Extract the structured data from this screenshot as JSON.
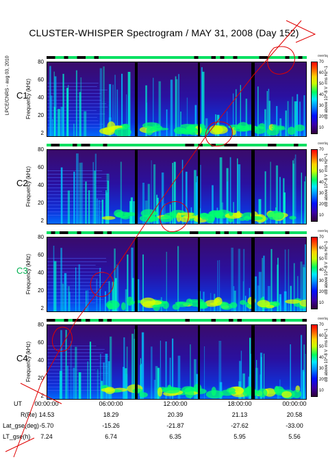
{
  "title": "CLUSTER-WHISPER Spectrogram / MAY 31, 2008 (Day 152)",
  "side_label": "LPCE/CNRS - aug 03, 2010",
  "colors": {
    "c3_label": "#00b050",
    "annotation_red": "#e00000"
  },
  "panels": [
    {
      "sat": "C1",
      "ylabel": "Frequency (kHz)",
      "cbar_label": "dB above 10^-8 V_rms Hz^-1"
    },
    {
      "sat": "C2",
      "ylabel": "Frequency (kHz)",
      "cbar_label": "dB above 10^-8 V_rms Hz^-1"
    },
    {
      "sat": "C3",
      "ylabel": "Frequency (kHz)",
      "cbar_label": "dB above 10^-8 V_rms Hz^-1"
    },
    {
      "sat": "C4",
      "ylabel": "Frequency (kHz)",
      "cbar_label": "dB above 10^-8 V_rms Hz^-1"
    }
  ],
  "corner_mark": "overlay",
  "chart_data": {
    "type": "heatmap",
    "yticks": [
      "80",
      "60",
      "40",
      "20",
      "2"
    ],
    "ylim": [
      2,
      80
    ],
    "colorbar_ticks": [
      "70",
      "60",
      "50",
      "40",
      "30",
      "20",
      "10"
    ],
    "colorbar_range": [
      10,
      70
    ],
    "x_ticks": [
      "00:00:00",
      "06:00:00",
      "12:00:00",
      "18:00:00",
      "00:00:00"
    ],
    "ephemeris": [
      {
        "label": "UT",
        "values": [
          "00:00:00",
          "06:00:00",
          "12:00:00",
          "18:00:00",
          "00:00:00"
        ]
      },
      {
        "label": "R(Re)",
        "values": [
          "14.53",
          "18.29",
          "20.39",
          "21.13",
          "20.58"
        ]
      },
      {
        "label": "Lat_gse(deg)",
        "values": [
          "-5.70",
          "-15.26",
          "-21.87",
          "-27.62",
          "-33.00"
        ]
      },
      {
        "label": "LT_gse(h)",
        "values": [
          "7.24",
          "6.74",
          "6.35",
          "5.95",
          "5.56"
        ]
      }
    ]
  }
}
